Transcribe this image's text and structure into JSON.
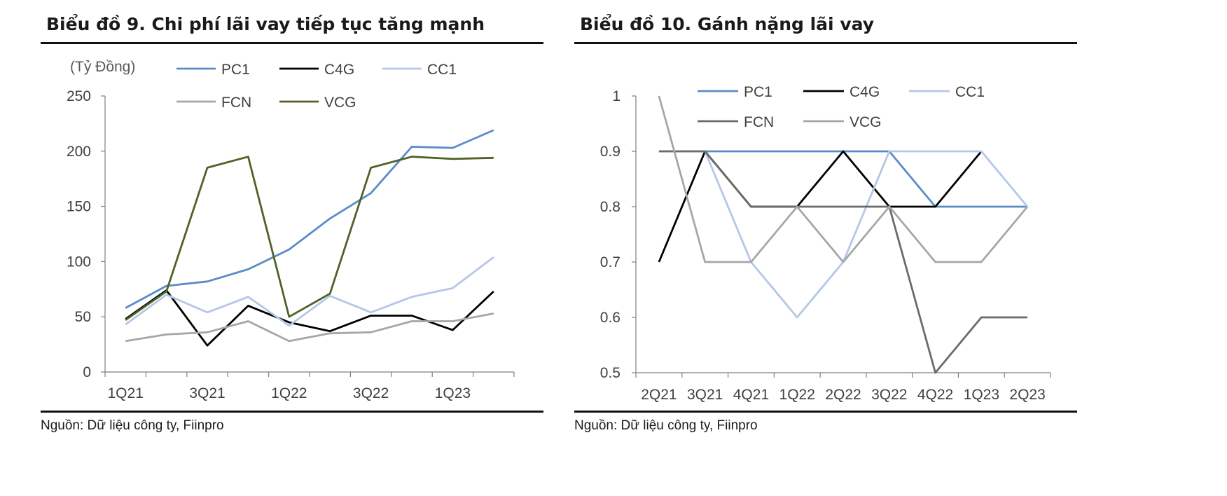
{
  "charts": [
    {
      "title": "Biểu đồ 9. Chi phí lãi vay tiếp tục tăng mạnh",
      "source": "Nguồn: Dữ liệu công ty, Fiinpro"
    },
    {
      "title": "Biểu đồ 10. Gánh nặng lãi vay",
      "source": "Nguồn: Dữ liệu công ty, Fiinpro"
    }
  ],
  "chart_data": [
    {
      "type": "line",
      "title": "Biểu đồ 9. Chi phí lãi vay tiếp tục tăng mạnh",
      "ylabel": "(Tỷ Đồng)",
      "xlabel": "",
      "categories": [
        "1Q21",
        "2Q21",
        "3Q21",
        "4Q21",
        "1Q22",
        "2Q22",
        "3Q22",
        "4Q22",
        "1Q23",
        "2Q23"
      ],
      "tick_labels": [
        "1Q21",
        "3Q21",
        "1Q22",
        "3Q22",
        "1Q23"
      ],
      "ylim": [
        0,
        250
      ],
      "yticks": [
        0,
        50,
        100,
        150,
        200,
        250
      ],
      "grid": false,
      "legend": "top",
      "series": [
        {
          "name": "PC1",
          "color": "#5b8cc8",
          "values": [
            58,
            78,
            82,
            93,
            111,
            139,
            162,
            204,
            203,
            219
          ]
        },
        {
          "name": "C4G",
          "color": "#000000",
          "values": [
            48,
            74,
            24,
            60,
            45,
            37,
            51,
            51,
            38,
            73
          ]
        },
        {
          "name": "CC1",
          "color": "#b4c7e7",
          "values": [
            43,
            70,
            54,
            68,
            42,
            69,
            54,
            68,
            76,
            104
          ]
        },
        {
          "name": "FCN",
          "color": "#a6a6a6",
          "values": [
            28,
            34,
            36,
            46,
            28,
            35,
            36,
            46,
            46,
            53
          ]
        },
        {
          "name": "VCG",
          "color": "#4f6228",
          "values": [
            47,
            73,
            185,
            195,
            50,
            71,
            185,
            195,
            193,
            194
          ]
        }
      ]
    },
    {
      "type": "line",
      "title": "Biểu đồ 10. Gánh nặng lãi vay",
      "xlabel": "",
      "ylabel": "",
      "categories": [
        "2Q21",
        "3Q21",
        "4Q21",
        "1Q22",
        "2Q22",
        "3Q22",
        "4Q22",
        "1Q23",
        "2Q23"
      ],
      "tick_labels": [
        "2Q21",
        "3Q21",
        "4Q21",
        "1Q22",
        "2Q22",
        "3Q22",
        "4Q22",
        "1Q23",
        "2Q23"
      ],
      "ylim": [
        0.5,
        1
      ],
      "yticks": [
        0.5,
        0.6,
        0.7,
        0.8,
        0.9,
        1
      ],
      "grid": false,
      "legend": "top",
      "series": [
        {
          "name": "PC1",
          "color": "#5b8cc8",
          "values": [
            0.9,
            0.9,
            0.9,
            0.9,
            0.9,
            0.9,
            0.8,
            0.8,
            0.8
          ]
        },
        {
          "name": "C4G",
          "color": "#000000",
          "values": [
            0.7,
            0.9,
            0.8,
            0.8,
            0.9,
            0.8,
            0.8,
            0.9,
            null
          ]
        },
        {
          "name": "CC1",
          "color": "#b4c7e7",
          "values": [
            0.9,
            0.9,
            0.7,
            0.6,
            0.7,
            0.9,
            0.9,
            0.9,
            0.8
          ]
        },
        {
          "name": "FCN",
          "color": "#6b6b6b",
          "values": [
            0.9,
            0.9,
            0.8,
            0.8,
            0.8,
            0.8,
            0.5,
            0.6,
            0.6
          ]
        },
        {
          "name": "VCG",
          "color": "#a6a6a6",
          "values": [
            1.0,
            0.7,
            0.7,
            0.8,
            0.7,
            0.8,
            0.7,
            0.7,
            0.8
          ]
        }
      ]
    }
  ]
}
